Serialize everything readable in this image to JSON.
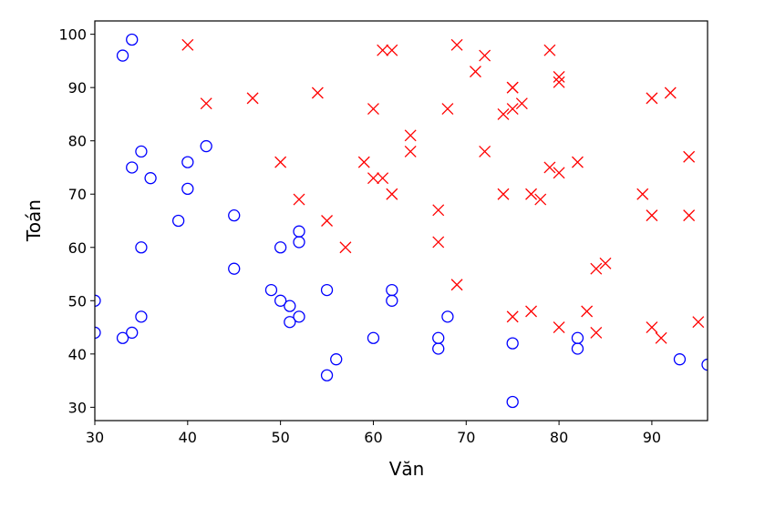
{
  "chart_data": {
    "type": "scatter",
    "xlabel": "Văn",
    "ylabel": "Toán",
    "xlim": [
      30,
      96
    ],
    "ylim": [
      27.5,
      102.5
    ],
    "xticks": [
      30,
      40,
      50,
      60,
      70,
      80,
      90
    ],
    "yticks": [
      30,
      40,
      50,
      60,
      70,
      80,
      90,
      100
    ],
    "grid": false,
    "legend": "none",
    "series": [
      {
        "marker": "x",
        "color": "#ff0000",
        "points": [
          [
            40,
            98
          ],
          [
            42,
            87
          ],
          [
            47,
            88
          ],
          [
            50,
            76
          ],
          [
            52,
            69
          ],
          [
            54,
            89
          ],
          [
            55,
            65
          ],
          [
            57,
            60
          ],
          [
            59,
            76
          ],
          [
            60,
            86
          ],
          [
            60,
            73
          ],
          [
            61,
            73
          ],
          [
            61,
            97
          ],
          [
            62,
            97
          ],
          [
            62,
            70
          ],
          [
            64,
            81
          ],
          [
            64,
            78
          ],
          [
            67,
            67
          ],
          [
            67,
            61
          ],
          [
            68,
            86
          ],
          [
            69,
            98
          ],
          [
            69,
            53
          ],
          [
            71,
            93
          ],
          [
            72,
            96
          ],
          [
            72,
            78
          ],
          [
            74,
            85
          ],
          [
            74,
            70
          ],
          [
            75,
            90
          ],
          [
            75,
            90
          ],
          [
            75,
            86
          ],
          [
            75,
            47
          ],
          [
            76,
            87
          ],
          [
            77,
            70
          ],
          [
            77,
            48
          ],
          [
            78,
            69
          ],
          [
            79,
            97
          ],
          [
            79,
            75
          ],
          [
            80,
            92
          ],
          [
            80,
            91
          ],
          [
            80,
            74
          ],
          [
            80,
            45
          ],
          [
            82,
            76
          ],
          [
            83,
            48
          ],
          [
            84,
            56
          ],
          [
            84,
            44
          ],
          [
            85,
            57
          ],
          [
            89,
            70
          ],
          [
            90,
            88
          ],
          [
            90,
            66
          ],
          [
            90,
            45
          ],
          [
            91,
            43
          ],
          [
            92,
            89
          ],
          [
            94,
            77
          ],
          [
            94,
            66
          ],
          [
            95,
            46
          ]
        ]
      },
      {
        "marker": "o",
        "color": "#0000ff",
        "points": [
          [
            30,
            50
          ],
          [
            30,
            44
          ],
          [
            33,
            96
          ],
          [
            33,
            43
          ],
          [
            34,
            99
          ],
          [
            34,
            75
          ],
          [
            34,
            44
          ],
          [
            35,
            78
          ],
          [
            35,
            60
          ],
          [
            35,
            47
          ],
          [
            36,
            73
          ],
          [
            39,
            65
          ],
          [
            40,
            76
          ],
          [
            40,
            71
          ],
          [
            42,
            79
          ],
          [
            45,
            66
          ],
          [
            45,
            56
          ],
          [
            49,
            52
          ],
          [
            50,
            60
          ],
          [
            50,
            50
          ],
          [
            51,
            49
          ],
          [
            51,
            46
          ],
          [
            52,
            63
          ],
          [
            52,
            61
          ],
          [
            52,
            47
          ],
          [
            55,
            52
          ],
          [
            55,
            36
          ],
          [
            56,
            39
          ],
          [
            60,
            43
          ],
          [
            62,
            52
          ],
          [
            62,
            50
          ],
          [
            67,
            43
          ],
          [
            67,
            41
          ],
          [
            68,
            47
          ],
          [
            75,
            42
          ],
          [
            75,
            31
          ],
          [
            82,
            43
          ],
          [
            82,
            41
          ],
          [
            93,
            39
          ],
          [
            96,
            38
          ]
        ]
      }
    ]
  }
}
